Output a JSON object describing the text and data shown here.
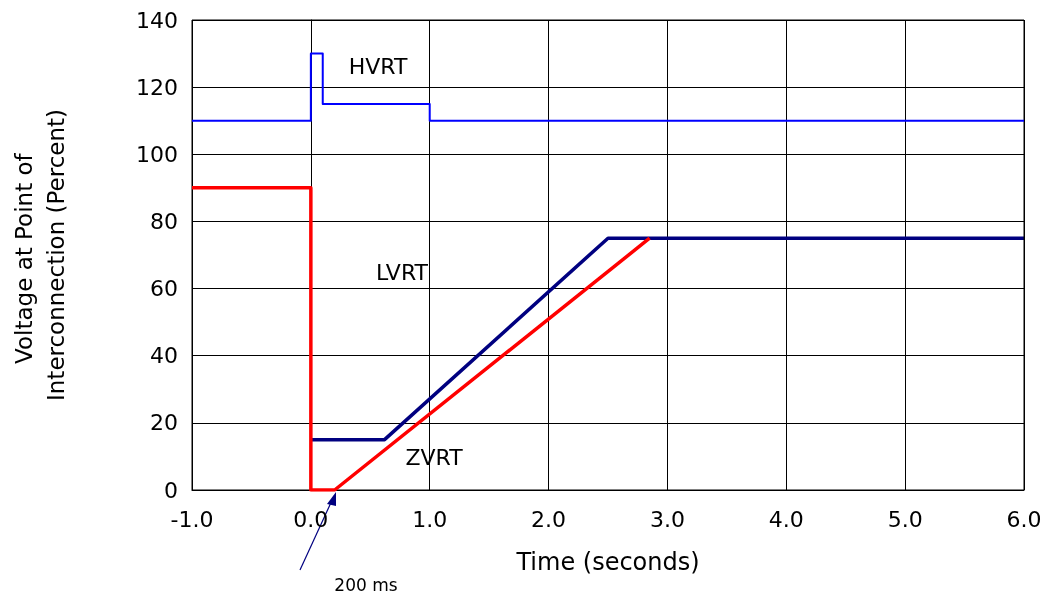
{
  "chart_data": {
    "type": "line",
    "xlabel": "Time (seconds)",
    "ylabel": "Voltage at Point of Interconnection (Percent)",
    "xlim": [
      -1,
      6
    ],
    "xticks": [
      {
        "value": -1,
        "label": "-1.0"
      },
      {
        "value": 0,
        "label": "0.0"
      },
      {
        "value": 1,
        "label": "1.0"
      },
      {
        "value": 2,
        "label": "2.0"
      },
      {
        "value": 3,
        "label": "3.0"
      },
      {
        "value": 4,
        "label": "4.0"
      },
      {
        "value": 5,
        "label": "5.0"
      },
      {
        "value": 6,
        "label": "6.0"
      }
    ],
    "ylim": [
      0,
      140
    ],
    "yticks": [
      0,
      20,
      40,
      60,
      80,
      100,
      120,
      140
    ],
    "grid": true,
    "marker": "none",
    "line_style": "solid",
    "series": [
      {
        "color": "#0000ff",
        "x": [
          -1,
          0,
          0,
          0.1,
          0.1,
          1,
          1,
          6
        ],
        "values": [
          110,
          110,
          130,
          130,
          115,
          115,
          110,
          110
        ]
      },
      {
        "color": "#ff0000",
        "x": [
          -1,
          0,
          0,
          0.2,
          2.85
        ],
        "values": [
          90,
          90,
          0,
          0,
          75
        ]
      },
      {
        "color": "#000080",
        "x": [
          0,
          0.62,
          2.5,
          6
        ],
        "values": [
          15,
          15,
          75,
          75
        ]
      }
    ],
    "annotations": [
      "HVRT",
      "LVRT",
      "ZVRT",
      "200 ms"
    ]
  }
}
